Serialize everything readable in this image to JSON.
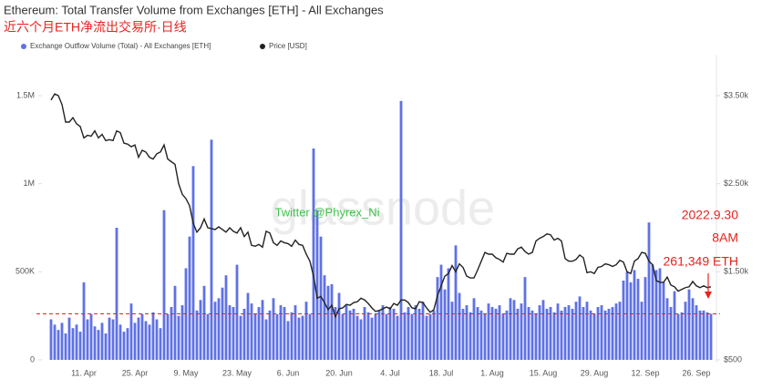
{
  "chart_data": {
    "type": "combo",
    "title": "Ethereum: Total Transfer Volume from Exchanges [ETH] - All Exchanges",
    "subtitle": "近六个月ETH净流出交易所·日线",
    "categories": [
      null,
      null,
      null,
      null,
      null,
      null,
      null,
      null,
      null,
      "11. Apr",
      null,
      null,
      null,
      null,
      null,
      null,
      null,
      null,
      null,
      null,
      null,
      null,
      null,
      "25. Apr",
      null,
      null,
      null,
      null,
      null,
      null,
      null,
      null,
      null,
      null,
      null,
      null,
      null,
      "9. May",
      null,
      null,
      null,
      null,
      null,
      null,
      null,
      null,
      null,
      null,
      null,
      null,
      null,
      "23. May",
      null,
      null,
      null,
      null,
      null,
      null,
      null,
      null,
      null,
      null,
      null,
      null,
      null,
      "6. Jun",
      null,
      null,
      null,
      null,
      null,
      null,
      null,
      null,
      null,
      null,
      null,
      null,
      null,
      "20. Jun",
      null,
      null,
      null,
      null,
      null,
      null,
      null,
      null,
      null,
      null,
      null,
      null,
      null,
      "4. Jul",
      null,
      null,
      null,
      null,
      null,
      null,
      null,
      null,
      null,
      null,
      null,
      null,
      null,
      "18. Jul",
      null,
      null,
      null,
      null,
      null,
      null,
      null,
      null,
      null,
      null,
      null,
      null,
      null,
      "1. Aug",
      null,
      null,
      null,
      null,
      null,
      null,
      null,
      null,
      null,
      null,
      null,
      null,
      null,
      "15. Aug",
      null,
      null,
      null,
      null,
      null,
      null,
      null,
      null,
      null,
      null,
      null,
      null,
      null,
      "29. Aug",
      null,
      null,
      null,
      null,
      null,
      null,
      null,
      null,
      null,
      null,
      null,
      null,
      null,
      "12. Sep",
      null,
      null,
      null,
      null,
      null,
      null,
      null,
      null,
      null,
      null,
      null,
      null,
      null,
      "26. Sep",
      null,
      null,
      null,
      null
    ],
    "series": [
      {
        "name": "Exchange Outflow Volume (Total) - All Exchanges [ETH]",
        "type": "bar",
        "color": "#5f71e6",
        "values": [
          230000,
          200000,
          170000,
          210000,
          150000,
          240000,
          180000,
          200000,
          160000,
          440000,
          230000,
          260000,
          190000,
          170000,
          210000,
          150000,
          240000,
          230000,
          750000,
          200000,
          160000,
          180000,
          320000,
          210000,
          240000,
          260000,
          220000,
          200000,
          270000,
          230000,
          180000,
          850000,
          260000,
          300000,
          420000,
          250000,
          310000,
          520000,
          700000,
          1100000,
          280000,
          340000,
          420000,
          260000,
          1250000,
          330000,
          350000,
          410000,
          480000,
          310000,
          300000,
          540000,
          250000,
          290000,
          380000,
          320000,
          260000,
          300000,
          340000,
          230000,
          280000,
          350000,
          260000,
          310000,
          300000,
          220000,
          270000,
          310000,
          240000,
          250000,
          330000,
          260000,
          1200000,
          850000,
          700000,
          480000,
          420000,
          430000,
          300000,
          380000,
          260000,
          310000,
          280000,
          290000,
          250000,
          230000,
          300000,
          270000,
          240000,
          260000,
          280000,
          310000,
          260000,
          300000,
          290000,
          250000,
          1470000,
          270000,
          300000,
          260000,
          310000,
          290000,
          330000,
          250000,
          260000,
          280000,
          470000,
          540000,
          400000,
          520000,
          330000,
          650000,
          380000,
          290000,
          310000,
          270000,
          350000,
          300000,
          280000,
          260000,
          320000,
          300000,
          290000,
          310000,
          260000,
          280000,
          350000,
          340000,
          290000,
          320000,
          470000,
          300000,
          280000,
          260000,
          310000,
          340000,
          290000,
          300000,
          270000,
          320000,
          280000,
          300000,
          310000,
          290000,
          330000,
          360000,
          300000,
          330000,
          280000,
          260000,
          300000,
          310000,
          280000,
          290000,
          300000,
          320000,
          330000,
          450000,
          500000,
          440000,
          510000,
          460000,
          330000,
          470000,
          780000,
          540000,
          510000,
          520000,
          440000,
          350000,
          300000,
          390000,
          260000,
          270000,
          330000,
          400000,
          350000,
          310000,
          280000,
          280000,
          270000,
          261349
        ]
      },
      {
        "name": "Price [USD]",
        "type": "line",
        "axis": "y2",
        "color": "#222222",
        "values": [
          3450,
          3520,
          3500,
          3400,
          3200,
          3200,
          3250,
          3180,
          3150,
          3020,
          3050,
          3040,
          3100,
          3020,
          3060,
          2990,
          3000,
          2990,
          3100,
          3080,
          2960,
          2950,
          2920,
          2940,
          2800,
          2880,
          2860,
          2800,
          2780,
          2840,
          2860,
          2940,
          2780,
          2750,
          2720,
          2500,
          2380,
          2330,
          2250,
          2050,
          1950,
          2000,
          2100,
          2000,
          1990,
          1980,
          2010,
          1980,
          1950,
          2000,
          1960,
          1940,
          2000,
          1900,
          1950,
          1800,
          1790,
          1810,
          1780,
          1960,
          1940,
          1830,
          1800,
          1850,
          1830,
          1820,
          1790,
          1860,
          1810,
          1800,
          1700,
          1620,
          1450,
          1200,
          1220,
          1150,
          1070,
          1120,
          990,
          1080,
          1090,
          1130,
          1120,
          1150,
          1160,
          1200,
          1180,
          1140,
          1090,
          1050,
          1060,
          1080,
          1100,
          1080,
          1140,
          1120,
          1180,
          1180,
          1150,
          1090,
          1080,
          1160,
          1150,
          1090,
          1040,
          1070,
          1230,
          1340,
          1450,
          1480,
          1570,
          1500,
          1590,
          1550,
          1450,
          1430,
          1430,
          1520,
          1620,
          1720,
          1700,
          1700,
          1660,
          1640,
          1610,
          1710,
          1700,
          1700,
          1760,
          1780,
          1730,
          1700,
          1720,
          1850,
          1880,
          1900,
          1930,
          1920,
          1860,
          1880,
          1850,
          1650,
          1620,
          1620,
          1640,
          1690,
          1660,
          1490,
          1500,
          1480,
          1550,
          1560,
          1590,
          1580,
          1560,
          1580,
          1630,
          1610,
          1500,
          1480,
          1620,
          1650,
          1720,
          1710,
          1620,
          1580,
          1400,
          1380,
          1380,
          1440,
          1350,
          1330,
          1280,
          1300,
          1320,
          1330,
          1390,
          1340,
          1320,
          1340,
          1320,
          1330
        ]
      }
    ],
    "ylim": [
      0,
      1500000
    ],
    "yticks": [
      0,
      {
        "value": 500000,
        "label": "500K"
      },
      {
        "value": 1000000,
        "label": "1M"
      },
      {
        "value": 1500000,
        "label": "1.5M"
      }
    ],
    "y2lim": [
      500,
      3500
    ],
    "y2ticks": [
      {
        "value": 500,
        "label": "$500"
      },
      {
        "value": 1500,
        "label": "$1.50k"
      },
      {
        "value": 2500,
        "label": "$2.50k"
      },
      {
        "value": 3500,
        "label": "$3.50k"
      }
    ],
    "annotations": [
      "2022.9.30",
      "8AM",
      "261,349 ETH"
    ],
    "annotation_color": "#e8231f",
    "watermarks": [
      "glassnode",
      "Twitter @Phyrex_Ni"
    ]
  }
}
